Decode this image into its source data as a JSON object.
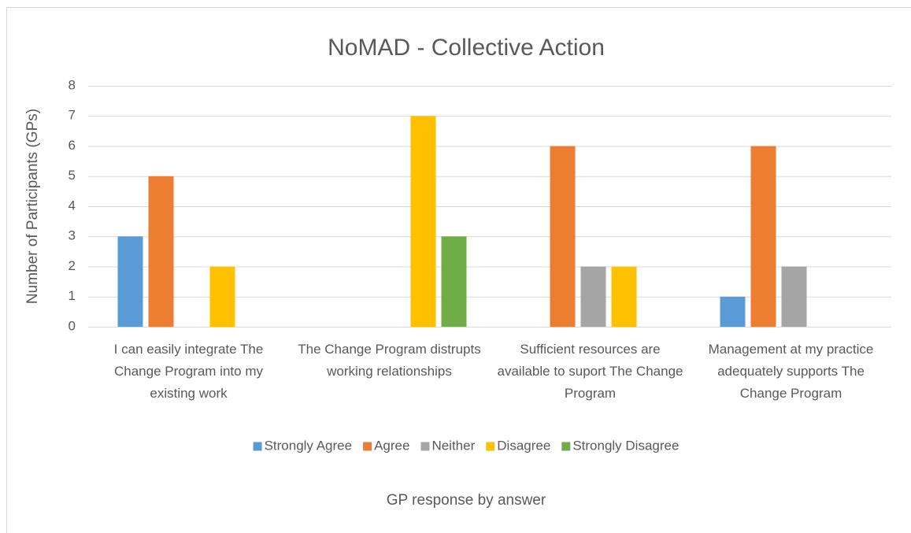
{
  "chart_data": {
    "type": "bar",
    "title": "NoMAD - Collective Action",
    "y_label": "Number of Participants (GPs)",
    "x_label": "GP response by answer",
    "categories": [
      "I can easily integrate The Change Program into my existing work",
      "The Change Program distrupts working relationships",
      "Sufficient resources are available to suport The Change Program",
      "Management at my practice adequately supports The Change Program"
    ],
    "series": [
      {
        "name": "Strongly Agree",
        "color": "#5b9bd5",
        "values": [
          3,
          0,
          0,
          1
        ]
      },
      {
        "name": "Agree",
        "color": "#ed7d31",
        "values": [
          5,
          0,
          6,
          6
        ]
      },
      {
        "name": "Neither",
        "color": "#a5a5a5",
        "values": [
          0,
          0,
          2,
          2
        ]
      },
      {
        "name": "Disagree",
        "color": "#ffc000",
        "values": [
          2,
          7,
          2,
          0
        ]
      },
      {
        "name": "Strongly Disagree",
        "color": "#70ad47",
        "values": [
          0,
          3,
          0,
          0
        ]
      }
    ],
    "ylim": [
      0,
      8
    ],
    "yticks": [
      0,
      1,
      2,
      3,
      4,
      5,
      6,
      7,
      8
    ],
    "grid": true,
    "legend": "bottom"
  }
}
